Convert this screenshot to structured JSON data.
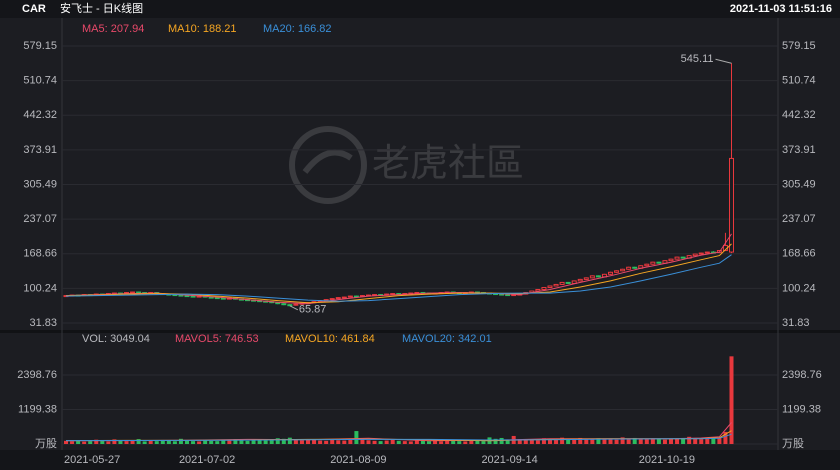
{
  "header": {
    "symbol": "CAR",
    "title": "安飞士 - 日K线图",
    "timestamp": "2021-11-03 11:51:16"
  },
  "watermark": "老虎社區",
  "chart_data": [
    {
      "type": "candlestick",
      "up_color": "#e8383d",
      "down_color": "#2bbd5f",
      "grid": true,
      "ylim": [
        31.83,
        579.15
      ],
      "yticks": [
        31.83,
        100.24,
        168.66,
        237.07,
        305.49,
        373.91,
        442.32,
        510.74,
        579.15
      ],
      "categories": [
        "2021-05-27",
        null,
        null,
        null,
        null,
        null,
        null,
        null,
        null,
        null,
        null,
        null,
        null,
        null,
        null,
        null,
        null,
        null,
        null,
        "2021-07-02",
        null,
        null,
        null,
        null,
        null,
        null,
        null,
        null,
        null,
        null,
        null,
        null,
        null,
        null,
        null,
        null,
        null,
        null,
        null,
        null,
        null,
        null,
        null,
        null,
        "2021-08-09",
        null,
        null,
        null,
        null,
        null,
        null,
        null,
        null,
        null,
        null,
        null,
        null,
        null,
        null,
        null,
        null,
        null,
        null,
        null,
        null,
        null,
        null,
        null,
        null,
        "2021-09-14",
        null,
        null,
        null,
        null,
        null,
        null,
        null,
        null,
        null,
        null,
        null,
        null,
        null,
        null,
        null,
        null,
        null,
        null,
        null,
        null,
        null,
        null,
        null,
        null,
        null,
        "2021-10-19",
        null,
        null,
        null,
        null,
        null,
        null,
        null,
        null,
        null,
        null,
        null,
        null,
        null,
        null,
        null
      ],
      "ohlc": [
        [
          85,
          87,
          84,
          86
        ],
        [
          86,
          88,
          85,
          87
        ],
        [
          87,
          88,
          85,
          86
        ],
        [
          86,
          89,
          85,
          88
        ],
        [
          88,
          89,
          86,
          87
        ],
        [
          87,
          90,
          86,
          89
        ],
        [
          89,
          90,
          87,
          88
        ],
        [
          88,
          91,
          87,
          90
        ],
        [
          90,
          92,
          89,
          91
        ],
        [
          91,
          92,
          89,
          90
        ],
        [
          90,
          93,
          89,
          92
        ],
        [
          92,
          94,
          91,
          93
        ],
        [
          93,
          94,
          91,
          92
        ],
        [
          92,
          93,
          90,
          91
        ],
        [
          91,
          93,
          90,
          92
        ],
        [
          92,
          93,
          89,
          90
        ],
        [
          90,
          91,
          88,
          89
        ],
        [
          89,
          90,
          87,
          88
        ],
        [
          88,
          89,
          86,
          87
        ],
        [
          87,
          88,
          85,
          86
        ],
        [
          86,
          87,
          84,
          85
        ],
        [
          85,
          86,
          83,
          84
        ],
        [
          84,
          86,
          83,
          85
        ],
        [
          85,
          86,
          82,
          83
        ],
        [
          83,
          84,
          81,
          82
        ],
        [
          82,
          83,
          80,
          81
        ],
        [
          81,
          82,
          79,
          80
        ],
        [
          80,
          82,
          79,
          81
        ],
        [
          81,
          82,
          78,
          79
        ],
        [
          79,
          80,
          77,
          78
        ],
        [
          78,
          79,
          76,
          77
        ],
        [
          77,
          78,
          75,
          76
        ],
        [
          76,
          77,
          74,
          75
        ],
        [
          75,
          76,
          73,
          74
        ],
        [
          74,
          75,
          71,
          72
        ],
        [
          72,
          73,
          69,
          70
        ],
        [
          70,
          71,
          67,
          68
        ],
        [
          68,
          69,
          65.87,
          67
        ],
        [
          67,
          70,
          66,
          69
        ],
        [
          69,
          72,
          68,
          71
        ],
        [
          71,
          73,
          70,
          72
        ],
        [
          72,
          75,
          71,
          74
        ],
        [
          74,
          77,
          73,
          76
        ],
        [
          76,
          79,
          75,
          78
        ],
        [
          78,
          81,
          77,
          80
        ],
        [
          80,
          83,
          79,
          82
        ],
        [
          82,
          84,
          81,
          83
        ],
        [
          83,
          86,
          82,
          85
        ],
        [
          85,
          86,
          83,
          84
        ],
        [
          84,
          87,
          83,
          86
        ],
        [
          86,
          88,
          85,
          87
        ],
        [
          87,
          89,
          86,
          88
        ],
        [
          88,
          89,
          86,
          87
        ],
        [
          87,
          90,
          86,
          89
        ],
        [
          89,
          91,
          88,
          90
        ],
        [
          90,
          91,
          88,
          89
        ],
        [
          89,
          91,
          88,
          90
        ],
        [
          90,
          92,
          89,
          91
        ],
        [
          91,
          93,
          90,
          92
        ],
        [
          92,
          93,
          90,
          91
        ],
        [
          91,
          92,
          89,
          90
        ],
        [
          90,
          92,
          89,
          91
        ],
        [
          91,
          93,
          90,
          92
        ],
        [
          92,
          94,
          91,
          93
        ],
        [
          93,
          94,
          91,
          92
        ],
        [
          92,
          93,
          90,
          91
        ],
        [
          91,
          93,
          90,
          92
        ],
        [
          92,
          94,
          91,
          93
        ],
        [
          93,
          94,
          91,
          92
        ],
        [
          92,
          93,
          90,
          91
        ],
        [
          91,
          92,
          89,
          90
        ],
        [
          90,
          91,
          88,
          89
        ],
        [
          89,
          90,
          87,
          88
        ],
        [
          88,
          89,
          86,
          87
        ],
        [
          87,
          89,
          86,
          88
        ],
        [
          88,
          90,
          87,
          89
        ],
        [
          89,
          93,
          88,
          92
        ],
        [
          92,
          96,
          91,
          95
        ],
        [
          95,
          99,
          94,
          98
        ],
        [
          98,
          103,
          97,
          102
        ],
        [
          102,
          106,
          101,
          105
        ],
        [
          105,
          109,
          104,
          108
        ],
        [
          108,
          113,
          107,
          112
        ],
        [
          112,
          113,
          109,
          110
        ],
        [
          110,
          116,
          109,
          115
        ],
        [
          115,
          119,
          114,
          118
        ],
        [
          118,
          122,
          117,
          121
        ],
        [
          121,
          126,
          120,
          125
        ],
        [
          125,
          126,
          122,
          123
        ],
        [
          123,
          129,
          122,
          128
        ],
        [
          128,
          133,
          127,
          132
        ],
        [
          132,
          136,
          131,
          135
        ],
        [
          135,
          139,
          134,
          138
        ],
        [
          138,
          143,
          137,
          142
        ],
        [
          142,
          143,
          139,
          140
        ],
        [
          140,
          146,
          139,
          145
        ],
        [
          145,
          149,
          144,
          148
        ],
        [
          148,
          153,
          147,
          152
        ],
        [
          152,
          153,
          149,
          150
        ],
        [
          150,
          156,
          149,
          155
        ],
        [
          155,
          159,
          154,
          158
        ],
        [
          158,
          163,
          157,
          162
        ],
        [
          162,
          163,
          159,
          160
        ],
        [
          160,
          166,
          159,
          165
        ],
        [
          165,
          169,
          164,
          168
        ],
        [
          168,
          171,
          167,
          170
        ],
        [
          170,
          173,
          169,
          172
        ],
        [
          172,
          174,
          170,
          171
        ],
        [
          171,
          176,
          170,
          175
        ],
        [
          175,
          210,
          174,
          185
        ],
        [
          172,
          545.11,
          170,
          357
        ]
      ],
      "series": [
        {
          "name": "MA5: 207.94",
          "color": "#e8496a",
          "x": [
            0,
            5,
            10,
            15,
            20,
            25,
            30,
            35,
            40,
            45,
            50,
            55,
            60,
            65,
            70,
            75,
            80,
            85,
            90,
            95,
            100,
            105,
            108,
            110
          ],
          "values": [
            86,
            88,
            90,
            91,
            87,
            83,
            78,
            73,
            70,
            78,
            85,
            88,
            91,
            92,
            91,
            88,
            98,
            112,
            125,
            140,
            152,
            166,
            172,
            207.94
          ]
        },
        {
          "name": "MA10: 188.21",
          "color": "#f5a623",
          "x": [
            0,
            5,
            10,
            15,
            20,
            25,
            30,
            35,
            40,
            45,
            50,
            55,
            60,
            65,
            70,
            75,
            80,
            85,
            90,
            95,
            100,
            105,
            108,
            110
          ],
          "values": [
            86,
            87,
            89,
            90,
            89,
            85,
            81,
            76,
            72,
            74,
            80,
            86,
            89,
            91,
            91,
            90,
            93,
            103,
            115,
            130,
            143,
            157,
            165,
            188.21
          ]
        },
        {
          "name": "MA20: 166.82",
          "color": "#3a8fd8",
          "x": [
            0,
            5,
            10,
            15,
            20,
            25,
            30,
            35,
            40,
            45,
            50,
            55,
            60,
            65,
            70,
            75,
            80,
            85,
            90,
            95,
            100,
            105,
            108,
            110
          ],
          "values": [
            85,
            86,
            87,
            88,
            89,
            88,
            85,
            81,
            77,
            75,
            76,
            80,
            84,
            88,
            90,
            91,
            91,
            95,
            103,
            115,
            128,
            142,
            150,
            166.82
          ]
        }
      ]
    },
    {
      "type": "bar",
      "legend": "VOL: 3049.04",
      "grid": true,
      "ylim": [
        0,
        3200
      ],
      "yticks": [
        {
          "value": 0,
          "label": "万股"
        },
        1199.38,
        2398.76
      ],
      "values": [
        110,
        90,
        130,
        80,
        100,
        150,
        120,
        90,
        160,
        110,
        100,
        130,
        170,
        90,
        120,
        100,
        140,
        110,
        95,
        180,
        120,
        100,
        90,
        130,
        110,
        100,
        150,
        120,
        170,
        140,
        110,
        130,
        150,
        120,
        160,
        200,
        180,
        220,
        150,
        130,
        170,
        140,
        120,
        110,
        150,
        130,
        120,
        140,
        450,
        160,
        130,
        110,
        100,
        120,
        140,
        110,
        100,
        90,
        120,
        110,
        100,
        130,
        95,
        110,
        120,
        100,
        90,
        110,
        130,
        100,
        230,
        180,
        210,
        150,
        280,
        170,
        140,
        160,
        130,
        200,
        150,
        180,
        220,
        190,
        170,
        210,
        160,
        190,
        200,
        170,
        180,
        150,
        230,
        170,
        210,
        180,
        160,
        200,
        170,
        150,
        190,
        180,
        210,
        250,
        200,
        170,
        190,
        220,
        230,
        420,
        3049.04
      ],
      "series": [
        {
          "name": "MAVOL5: 746.53",
          "color": "#e8496a",
          "x": [
            0,
            10,
            20,
            30,
            40,
            50,
            60,
            70,
            80,
            90,
            100,
            105,
            108,
            110
          ],
          "values": [
            115,
            120,
            130,
            160,
            150,
            200,
            110,
            130,
            180,
            180,
            180,
            210,
            250,
            746.53
          ]
        },
        {
          "name": "MAVOL10: 461.84",
          "color": "#f5a623",
          "x": [
            0,
            10,
            20,
            30,
            40,
            50,
            60,
            70,
            80,
            90,
            100,
            105,
            108,
            110
          ],
          "values": [
            120,
            125,
            125,
            140,
            160,
            170,
            150,
            115,
            160,
            180,
            180,
            190,
            215,
            461.84
          ]
        },
        {
          "name": "MAVOL20: 342.01",
          "color": "#3a8fd8",
          "x": [
            0,
            10,
            20,
            30,
            40,
            50,
            60,
            70,
            80,
            90,
            100,
            105,
            108,
            110
          ],
          "values": [
            120,
            122,
            125,
            135,
            145,
            160,
            160,
            140,
            145,
            170,
            180,
            185,
            200,
            342.01
          ]
        }
      ]
    }
  ]
}
